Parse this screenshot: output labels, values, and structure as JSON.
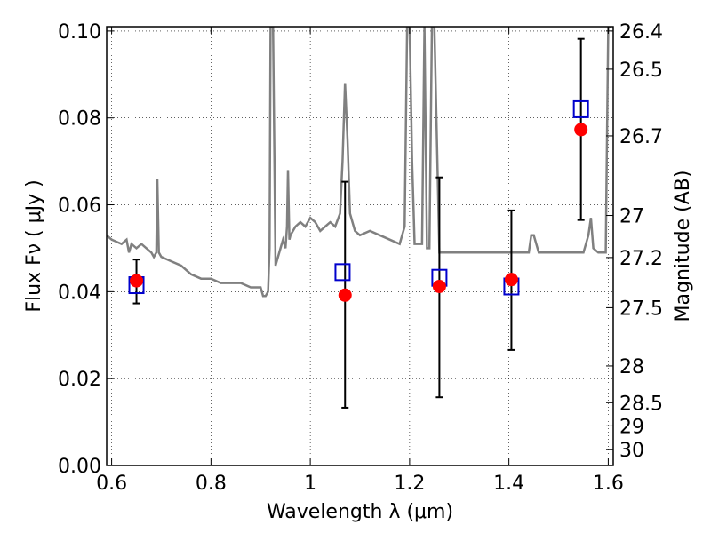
{
  "chart_data": {
    "type": "scatter",
    "xlabel": "Wavelength  λ (μm)",
    "ylabel": "Flux  Fν  ( μJy )",
    "y2label": "Magnitude (AB)",
    "xlim": [
      0.59,
      1.61
    ],
    "ylim": [
      0.0,
      0.101
    ],
    "grid": true,
    "x_ticks": [
      0.6,
      0.8,
      1.0,
      1.2,
      1.4,
      1.6
    ],
    "x_tick_labels": [
      "0.6",
      "0.8",
      "1",
      "1.2",
      "1.4",
      "1.6"
    ],
    "y_ticks": [
      0.0,
      0.02,
      0.04,
      0.06,
      0.08,
      0.1
    ],
    "y_tick_labels": [
      "0.00",
      "0.02",
      "0.04",
      "0.06",
      "0.08",
      "0.10"
    ],
    "mag_ticks": [
      {
        "label": "26.4",
        "value": 26.4
      },
      {
        "label": "26.5",
        "value": 26.5
      },
      {
        "label": "26.7",
        "value": 26.7
      },
      {
        "label": "27",
        "value": 27.0
      },
      {
        "label": "27.2",
        "value": 27.2
      },
      {
        "label": "27.5",
        "value": 27.5
      },
      {
        "label": "28",
        "value": 28.0
      },
      {
        "label": "28.5",
        "value": 28.5
      },
      {
        "label": "29",
        "value": 29.0
      },
      {
        "label": "30",
        "value": 30.0
      }
    ],
    "series": [
      {
        "kind": "line",
        "color": "#808080",
        "x": [
          0.59,
          0.6,
          0.62,
          0.63,
          0.635,
          0.64,
          0.65,
          0.66,
          0.67,
          0.68,
          0.685,
          0.69,
          0.692,
          0.695,
          0.7,
          0.72,
          0.74,
          0.76,
          0.78,
          0.8,
          0.82,
          0.84,
          0.86,
          0.88,
          0.9,
          0.905,
          0.91,
          0.915,
          0.918,
          0.92,
          0.925,
          0.93,
          0.935,
          0.94,
          0.945,
          0.95,
          0.953,
          0.955,
          0.958,
          0.96,
          0.97,
          0.98,
          0.99,
          1.0,
          1.01,
          1.02,
          1.03,
          1.04,
          1.05,
          1.06,
          1.065,
          1.07,
          1.075,
          1.08,
          1.085,
          1.09,
          1.1,
          1.12,
          1.14,
          1.16,
          1.18,
          1.19,
          1.195,
          1.2,
          1.205,
          1.21,
          1.215,
          1.22,
          1.225,
          1.23,
          1.235,
          1.24,
          1.245,
          1.25,
          1.26,
          1.3,
          1.35,
          1.4,
          1.42,
          1.44,
          1.445,
          1.45,
          1.46,
          1.48,
          1.5,
          1.52,
          1.54,
          1.55,
          1.56,
          1.565,
          1.57,
          1.58,
          1.59,
          1.595,
          1.6,
          1.605
        ],
        "y": [
          0.053,
          0.052,
          0.051,
          0.052,
          0.049,
          0.051,
          0.05,
          0.051,
          0.05,
          0.049,
          0.048,
          0.049,
          0.066,
          0.049,
          0.048,
          0.047,
          0.046,
          0.044,
          0.043,
          0.043,
          0.042,
          0.042,
          0.042,
          0.041,
          0.041,
          0.039,
          0.039,
          0.04,
          0.05,
          0.101,
          0.101,
          0.046,
          0.048,
          0.05,
          0.052,
          0.05,
          0.055,
          0.068,
          0.052,
          0.053,
          0.055,
          0.056,
          0.055,
          0.057,
          0.056,
          0.054,
          0.055,
          0.056,
          0.055,
          0.058,
          0.07,
          0.088,
          0.075,
          0.058,
          0.056,
          0.054,
          0.053,
          0.054,
          0.053,
          0.052,
          0.051,
          0.055,
          0.101,
          0.101,
          0.07,
          0.051,
          0.051,
          0.051,
          0.051,
          0.101,
          0.05,
          0.05,
          0.101,
          0.101,
          0.049,
          0.049,
          0.049,
          0.049,
          0.049,
          0.049,
          0.053,
          0.053,
          0.049,
          0.049,
          0.049,
          0.049,
          0.049,
          0.049,
          0.053,
          0.057,
          0.05,
          0.049,
          0.049,
          0.049,
          0.101,
          0.101
        ]
      },
      {
        "kind": "errorbar-points",
        "color": "#ff0000",
        "x": [
          0.65,
          1.07,
          1.26,
          1.405,
          1.545
        ],
        "y": [
          0.0425,
          0.0392,
          0.0412,
          0.0428,
          0.0773
        ],
        "yerr_low": [
          0.0373,
          0.0133,
          0.0157,
          0.0266,
          0.0565
        ],
        "yerr_high": [
          0.0474,
          0.0653,
          0.0663,
          0.0587,
          0.0982
        ]
      },
      {
        "kind": "square-markers",
        "color": "#0000cc",
        "x": [
          0.65,
          1.065,
          1.26,
          1.405,
          1.545
        ],
        "y": [
          0.0415,
          0.0445,
          0.0432,
          0.0412,
          0.082
        ]
      }
    ]
  }
}
